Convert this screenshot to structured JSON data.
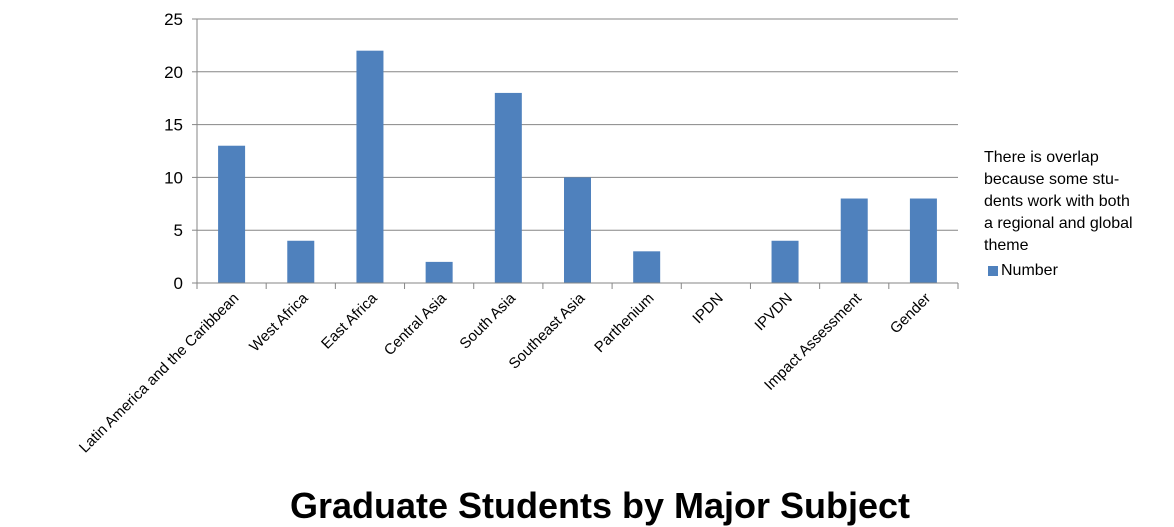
{
  "chart_data": {
    "type": "bar",
    "title": "Graduate Students by Major Subject",
    "categories": [
      "Latin America and the Caribbean",
      "West Africa",
      "East Africa",
      "Central Asia",
      "South Asia",
      "Southeast Asia",
      "Parthenium",
      "IPDN",
      "IPVDN",
      "Impact Assessment",
      "Gender"
    ],
    "series": [
      {
        "name": "Number",
        "values": [
          13,
          4,
          22,
          2,
          18,
          10,
          3,
          0,
          4,
          8,
          8
        ],
        "color": "#4F81BD"
      }
    ],
    "ylim": [
      0,
      25
    ],
    "yticks": [
      "0",
      "5",
      "10",
      "15",
      "20",
      "25"
    ],
    "grid": true,
    "legend_position": "right",
    "annotation": [
      "There is overlap",
      "because some stu-",
      "dents work with both",
      "a regional and global",
      "theme"
    ]
  }
}
